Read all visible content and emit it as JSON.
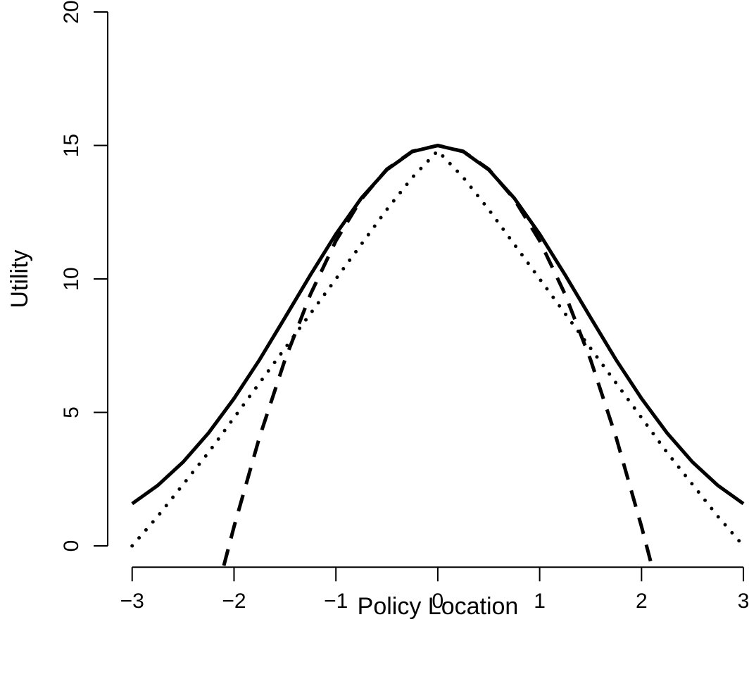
{
  "chart_data": {
    "type": "line",
    "x_label": "Policy Location",
    "y_label": "Utility",
    "xlim": [
      -3.24,
      3.24
    ],
    "ylim": [
      -0.8,
      20.8
    ],
    "xticks": [
      {
        "value": -3,
        "label": "−3"
      },
      {
        "value": -2,
        "label": "−2"
      },
      {
        "value": -1,
        "label": "−1"
      },
      0,
      1,
      2,
      3
    ],
    "yticks": [
      0,
      5,
      10,
      15,
      20
    ],
    "series": [
      {
        "color": "#000000",
        "style": "solid",
        "x": [
          -3,
          -2.75,
          -2.5,
          -2.25,
          -2,
          -1.75,
          -1.5,
          -1.25,
          -1,
          -0.75,
          -0.5,
          -0.25,
          0,
          0.25,
          0.5,
          0.75,
          1,
          1.25,
          1.5,
          1.75,
          2,
          2.25,
          2.5,
          2.75,
          3
        ],
        "values": [
          1.58,
          2.26,
          3.14,
          4.23,
          5.52,
          6.97,
          8.55,
          10.15,
          11.68,
          13.03,
          14.09,
          14.77,
          15,
          14.77,
          14.09,
          13.03,
          11.68,
          10.15,
          8.55,
          6.97,
          5.52,
          4.23,
          3.14,
          2.26,
          1.58
        ]
      },
      {
        "color": "#000000",
        "style": "dotted",
        "x": [
          -3,
          -2.75,
          -2.5,
          -2.25,
          -2,
          -1.75,
          -1.5,
          -1.25,
          -1,
          -0.75,
          -0.5,
          -0.25,
          0,
          0.25,
          0.5,
          0.75,
          1,
          1.25,
          1.5,
          1.75,
          2,
          2.25,
          2.5,
          2.75,
          3
        ],
        "values": [
          0,
          1.1,
          2.3,
          3.5,
          4.8,
          6.1,
          7.4,
          8.7,
          10.0,
          11.3,
          12.6,
          13.8,
          14.8,
          13.8,
          12.6,
          11.3,
          10.0,
          8.7,
          7.4,
          6.1,
          4.8,
          3.5,
          2.3,
          1.1,
          0
        ]
      },
      {
        "color": "#000000",
        "style": "dashed",
        "x": [
          -2.1,
          -2,
          -1.75,
          -1.5,
          -1.25,
          -1,
          -0.75,
          -0.5,
          -0.25,
          0,
          0.25,
          0.5,
          0.75,
          1,
          1.25,
          1.5,
          1.75,
          2,
          2.1
        ],
        "values": [
          -0.74,
          0.72,
          4.07,
          6.97,
          9.42,
          11.43,
          12.99,
          14.11,
          14.78,
          15,
          14.78,
          14.11,
          12.99,
          11.43,
          9.42,
          6.97,
          4.07,
          0.72,
          -0.74
        ]
      }
    ]
  }
}
